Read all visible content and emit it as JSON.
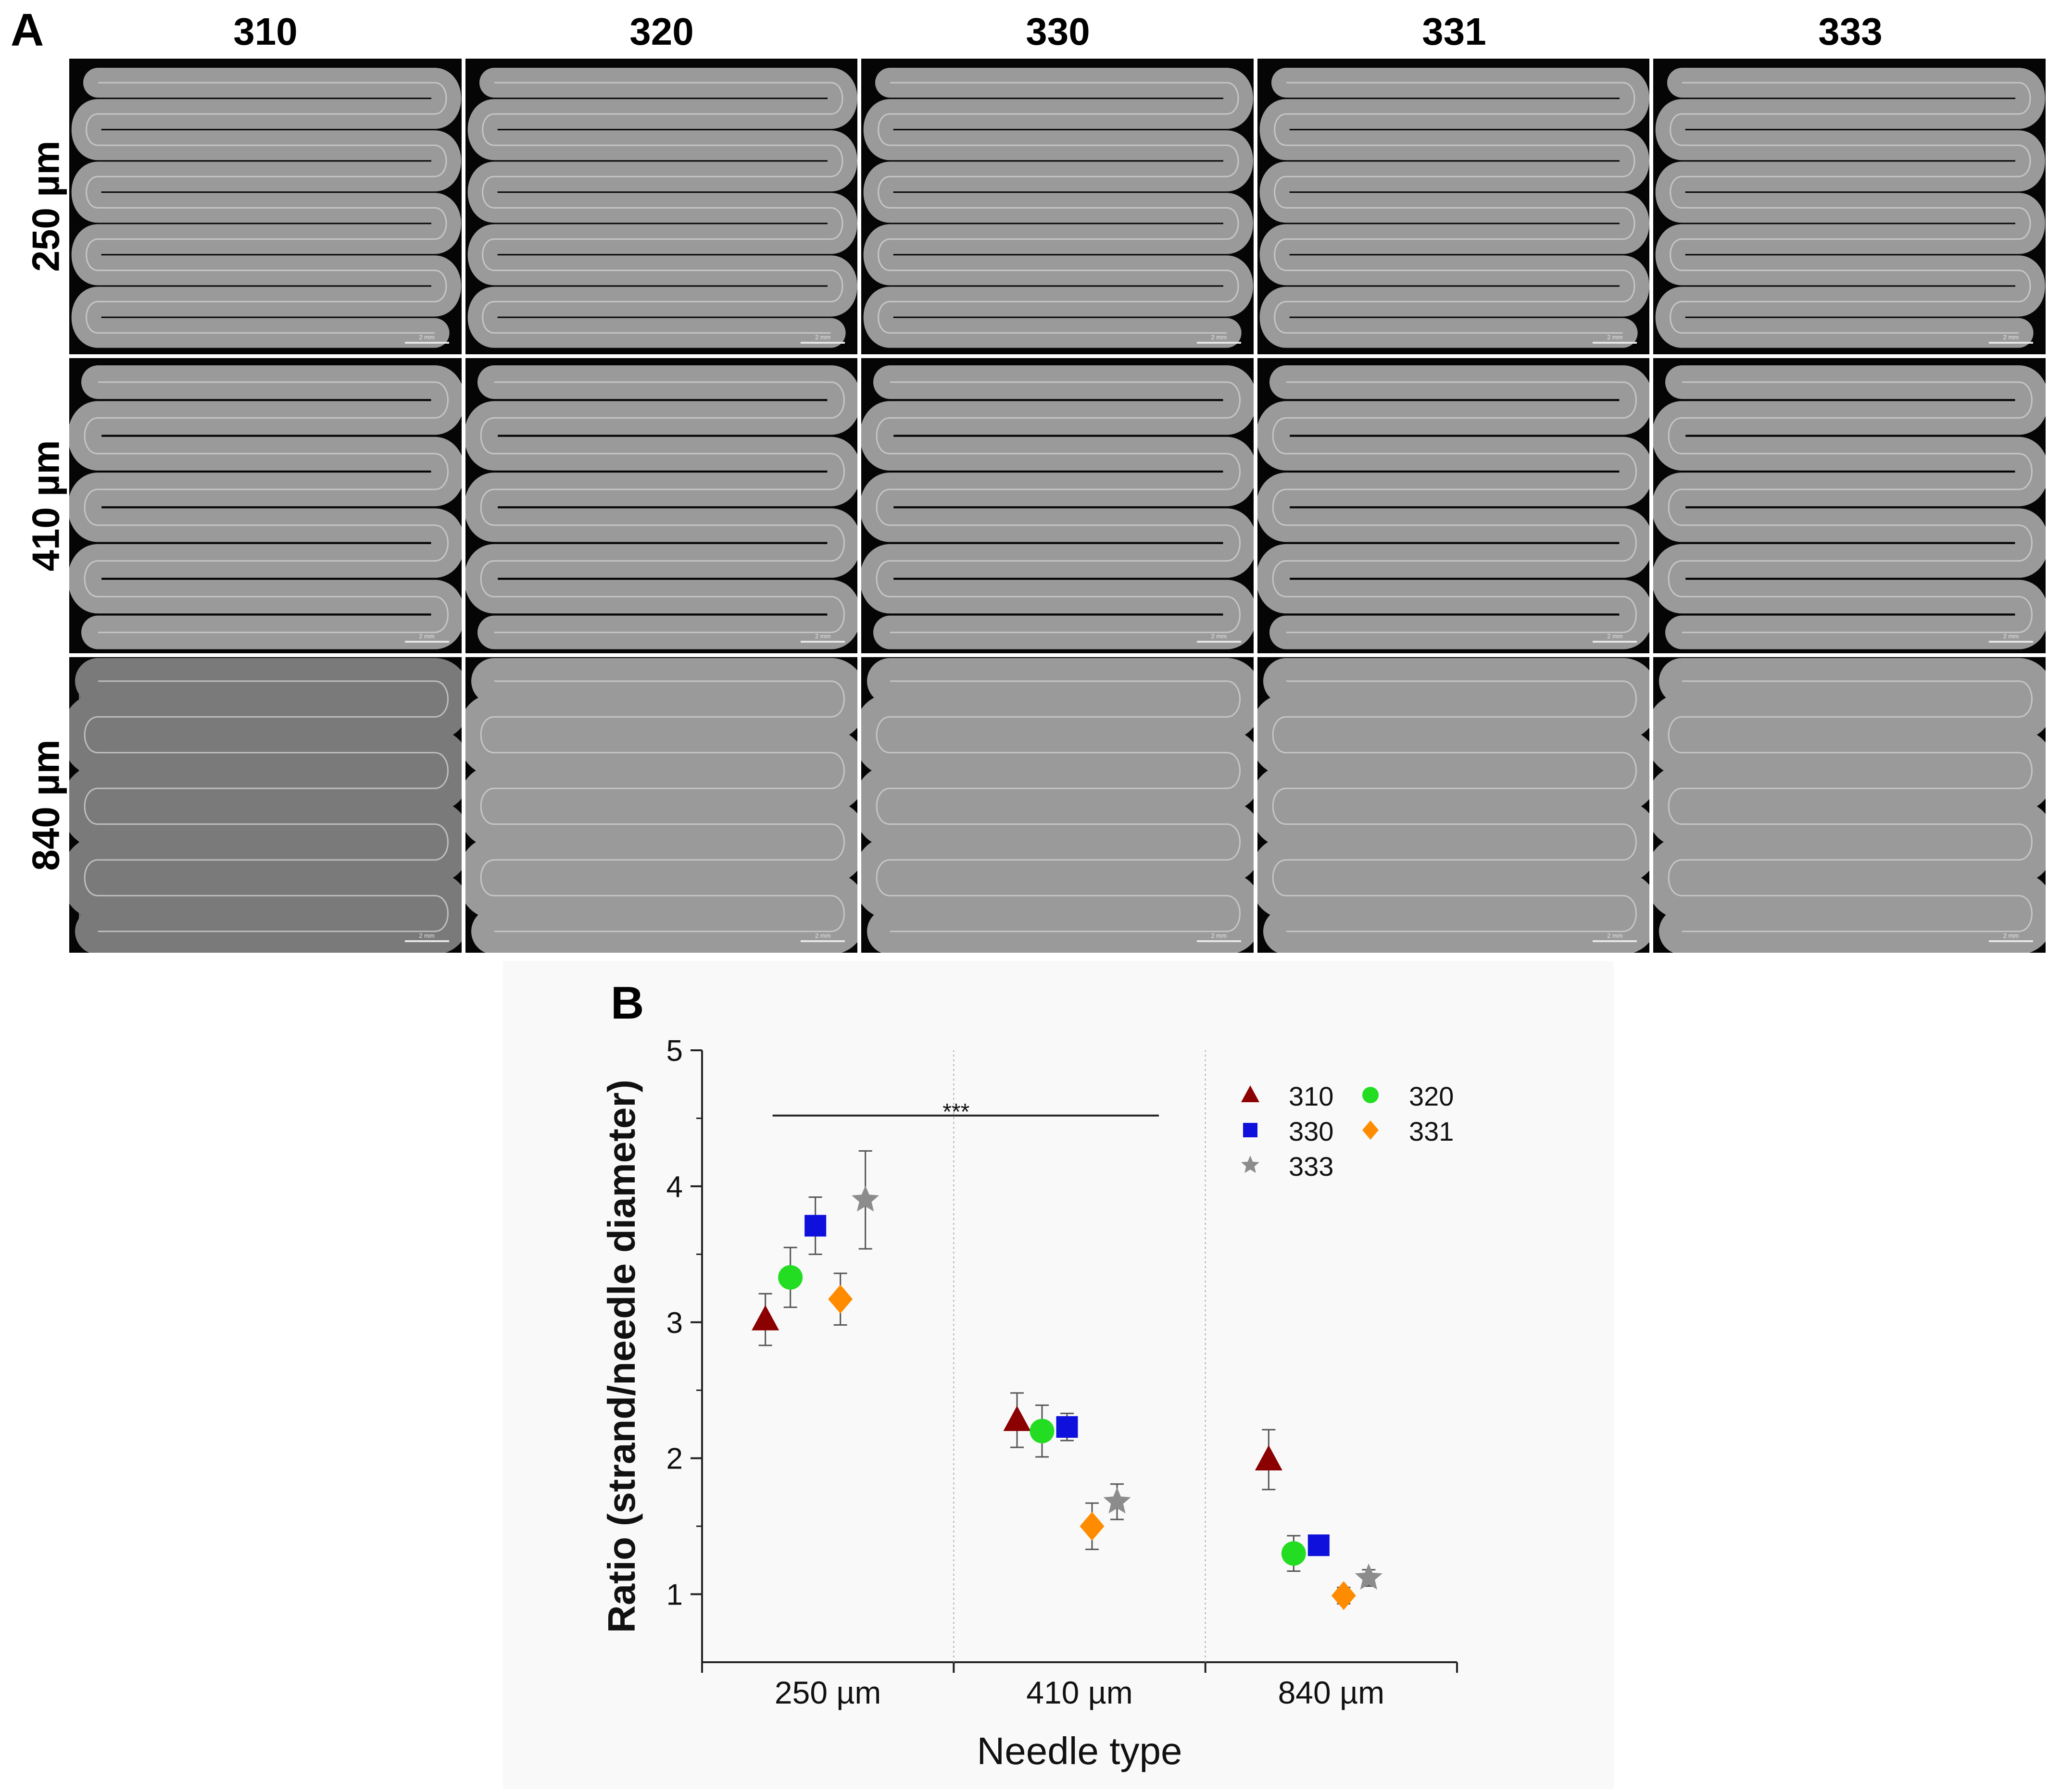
{
  "panel_a": {
    "letter": "A",
    "columns": [
      "310",
      "320",
      "330",
      "331",
      "333"
    ],
    "rows": [
      "250 µm",
      "410 µm",
      "840 µm"
    ],
    "scale_bar_label": "2 mm"
  },
  "panel_b": {
    "letter": "B"
  },
  "chart_data": {
    "type": "scatter",
    "xlabel": "Needle type",
    "ylabel": "Ratio (strand/needle diameter)",
    "categories": [
      "250 µm",
      "410 µm",
      "840 µm"
    ],
    "ylim": [
      0.5,
      5
    ],
    "yticks": [
      1,
      2,
      3,
      4,
      5
    ],
    "legend_position": "top-right",
    "series": [
      {
        "name": "310",
        "marker": "triangle",
        "color": "#8b0000",
        "values": [
          3.02,
          2.28,
          1.99
        ],
        "errors": [
          0.19,
          0.2,
          0.22
        ]
      },
      {
        "name": "320",
        "marker": "circle",
        "color": "#22dd22",
        "values": [
          3.33,
          2.2,
          1.3
        ],
        "errors": [
          0.22,
          0.19,
          0.13
        ]
      },
      {
        "name": "330",
        "marker": "square",
        "color": "#1010dd",
        "values": [
          3.71,
          2.23,
          1.36
        ],
        "errors": [
          0.21,
          0.1,
          0.06
        ]
      },
      {
        "name": "331",
        "marker": "diamond",
        "color": "#ff8c00",
        "values": [
          3.17,
          1.5,
          0.99
        ],
        "errors": [
          0.19,
          0.17,
          0.06
        ]
      },
      {
        "name": "333",
        "marker": "star",
        "color": "#8c8c8c",
        "values": [
          3.9,
          1.68,
          1.12
        ],
        "errors": [
          0.36,
          0.13,
          0.06
        ]
      }
    ],
    "annotation": {
      "text": "***",
      "from_category": "250 µm",
      "to_category": "410 µm",
      "y": 4.52
    }
  }
}
